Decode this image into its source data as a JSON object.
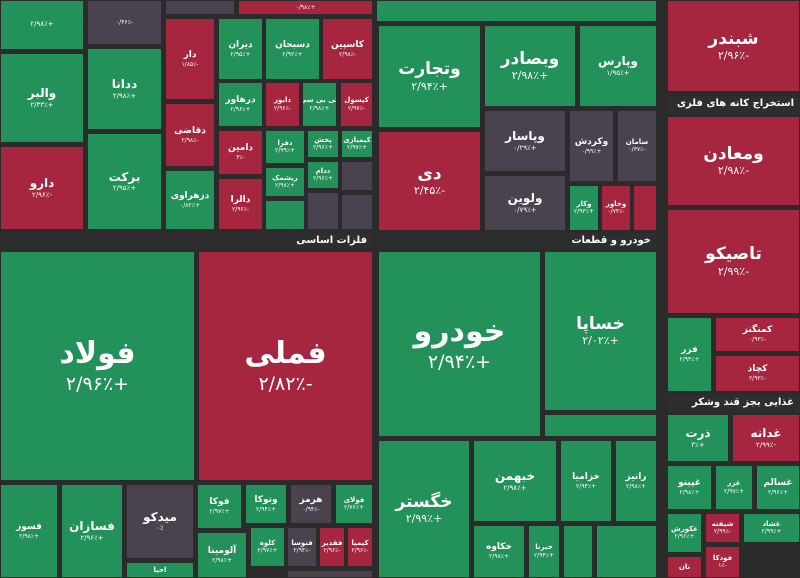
{
  "sectors": [
    "فلزات اساسی",
    "خودرو و قطعات",
    "استخراج کانه های فلزی",
    "غذایی بجز قند وشکر"
  ],
  "tiles": [
    {
      "change": "+۲/۹۸٪"
    },
    {
      "change": "-۰/۴۶٪"
    },
    {
      "change": "+۰/۹۸٪"
    },
    {
      "name": "والبر",
      "change": "+۲/۳۳٪"
    },
    {
      "name": "ددانا",
      "change": "+۲/۹۸٪"
    },
    {
      "name": "دارو",
      "change": "-۲/۹۶٪"
    },
    {
      "name": "برکت",
      "change": "+۲/۹۵٪"
    },
    {
      "name": "دار",
      "change": "-۱/۸۵٪"
    },
    {
      "name": "دیران",
      "change": "+۲/۹۵٪"
    },
    {
      "name": "دسبحان",
      "change": "+۲/۹۲٪"
    },
    {
      "name": "کاسپین",
      "change": "-۲/۹۸٪"
    },
    {
      "name": "دقاضی",
      "change": "-۲/۹۸٪"
    },
    {
      "name": "درهاور",
      "change": "+۲/۹۶٪"
    },
    {
      "name": "دابور",
      "change": "-۲/۹۶٪"
    },
    {
      "name": "کی بی سی",
      "change": "+۲/۹۸٪"
    },
    {
      "name": "کپسول",
      "change": "-۲/۹۷٪"
    },
    {
      "name": "دامین",
      "change": "-۳٪"
    },
    {
      "name": "دفرا",
      "change": "+۲/۹۹٪"
    },
    {
      "name": "پخش",
      "change": "+۲/۹۶٪"
    },
    {
      "name": "کیمیازی",
      "change": "+۲/۹۷٪"
    },
    {
      "name": "دزهراوی",
      "change": "+۰/۸۲٪"
    },
    {
      "name": "دالرا",
      "change": "-۲/۹۶٪"
    },
    {
      "name": "ریشمک",
      "change": "+۲/۹۸٪"
    },
    {
      "name": "ددام",
      "change": "+۲/۹۶٪"
    },
    {
      "name": "وتجارت",
      "change": "+۲/۹۴٪"
    },
    {
      "name": "وبصادر",
      "change": "+۲/۹۸٪"
    },
    {
      "name": "وپارس",
      "change": "+۱/۹۵٪"
    },
    {
      "name": "وپاسار",
      "change": "+۰/۲۹٪"
    },
    {
      "name": "وکردش",
      "change": "+۰/۹۹٪"
    },
    {
      "name": "سامان",
      "change": "-۰/۳۷٪"
    },
    {
      "name": "دی",
      "change": "-۲/۴۵٪"
    },
    {
      "name": "ولوین",
      "change": "+۰/۷۹٪"
    },
    {
      "name": "وکار",
      "change": "+۲/۹۳٪"
    },
    {
      "name": "وخاور",
      "change": "-۰/۷۴٪"
    },
    {
      "name": "شبندر",
      "change": "-۲/۹۶٪"
    },
    {
      "name": "ومعادن",
      "change": "-۲/۹۸٪"
    },
    {
      "name": "تاصیکو",
      "change": "-۲/۹۹٪"
    },
    {
      "name": "فزر",
      "change": "+۲/۹۴٪"
    },
    {
      "name": "کمنگنز",
      "change": "-۰/۹۳٪"
    },
    {
      "name": "کچاد",
      "change": "-۲/۹۳٪"
    },
    {
      "name": "ذرت",
      "change": "+۳٪"
    },
    {
      "name": "غدانه",
      "change": "-۲/۹۹٪"
    },
    {
      "name": "غپینو",
      "change": "+۲/۹۸٪"
    },
    {
      "name": "غزر",
      "change": "+۲/۹۷٪"
    },
    {
      "name": "غسالم",
      "change": "+۲/۹۶٪"
    },
    {
      "name": "غکورش",
      "change": "+۲/۹۶٪"
    },
    {
      "name": "شیفته",
      "change": "-۲/۹۹٪"
    },
    {
      "name": "غشاد",
      "change": "+۲/۹۹٪"
    },
    {
      "name": "فودکا",
      "change": "-۱٪"
    },
    {
      "name": "نان"
    },
    {
      "name": "فولاد",
      "change": "+۲/۹۶٪"
    },
    {
      "name": "فملی",
      "change": "-۲/۸۲٪"
    },
    {
      "name": "فسوز",
      "change": "+۲/۹۸٪"
    },
    {
      "name": "فسازان",
      "change": "+۲/۹۶٪"
    },
    {
      "name": "میدکو",
      "change": "۰٪"
    },
    {
      "name": "احیا"
    },
    {
      "name": "فوکا",
      "change": "+۲/۹۷٪"
    },
    {
      "name": "وتوکا",
      "change": "+۲/۹۴٪"
    },
    {
      "name": "هرمز",
      "change": "-۰/۹۴٪"
    },
    {
      "name": "فولای",
      "change": "+۲/۷۶٪"
    },
    {
      "name": "آلومینا",
      "change": "+۲/۹۸٪"
    },
    {
      "name": "کلوه",
      "change": "+۲/۹۷٪"
    },
    {
      "name": "فنوسا",
      "change": "-۲/۹۴٪"
    },
    {
      "name": "فقدیر",
      "change": "-۲/۹۶٪"
    },
    {
      "name": "کیمیا",
      "change": "-۲/۹۶٪"
    },
    {
      "name": "خودرو",
      "change": "+۲/۹۴٪"
    },
    {
      "name": "خساپا",
      "change": "+۲/۰۲٪"
    },
    {
      "name": "خگستر",
      "change": "+۲/۹۹٪"
    },
    {
      "name": "خبهمن",
      "change": "+۲/۹۸٪"
    },
    {
      "name": "خزامیا",
      "change": "+۲/۹۴٪"
    },
    {
      "name": "رانیز",
      "change": "+۲/۹۸٪"
    },
    {
      "name": "خکاوه",
      "change": "+۲/۹۸٪"
    },
    {
      "name": "خبرنا",
      "change": "+۲/۹۴٪"
    }
  ]
}
